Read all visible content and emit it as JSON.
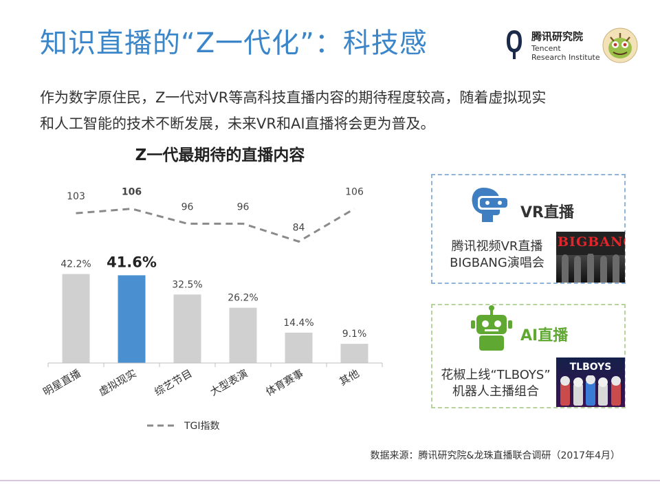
{
  "page": {
    "title": "知识直播的“Z一代化”：科技感",
    "intro": [
      "作为数字原住民，Z一代对VR等高科技直播内容的期待程度较高，随着虚拟现实",
      "和人工智能的技术不断发展，未来VR和AI直播将会更为普及。"
    ],
    "source": "数据来源：腾讯研究院&龙珠直播联合调研（2017年4月）"
  },
  "logo": {
    "name_cn": "腾讯研究院",
    "name_en_1": "Tencent",
    "name_en_2": "Research Institute"
  },
  "chart_data": {
    "type": "bar",
    "title": "Z一代最期待的直播内容",
    "categories": [
      "明星直播",
      "虚拟现实",
      "综艺节目",
      "大型表演",
      "体育赛事",
      "其他"
    ],
    "series": [
      {
        "values": [
          42.2,
          41.6,
          32.5,
          26.2,
          14.4,
          9.1
        ],
        "value_labels": [
          "42.2%",
          "41.6%",
          "32.5%",
          "26.2%",
          "14.4%",
          "9.1%"
        ],
        "highlight_index": 1,
        "color": "#d0d0d0",
        "highlight_color": "#4a8fd0"
      },
      {
        "name": "TGI指数",
        "type": "line",
        "style": "dashed",
        "values": [
          103,
          106,
          96,
          96,
          84,
          106
        ],
        "value_labels": [
          "103",
          "106",
          "96",
          "96",
          "84",
          "106"
        ],
        "highlight_index": 1,
        "color": "#8a8a8a"
      }
    ],
    "ylim": [
      0,
      45
    ],
    "tgi_range": [
      80,
      110
    ],
    "grid": false,
    "legend": "bottom-left"
  },
  "cards": {
    "vr": {
      "title": "VR直播",
      "text": [
        "腾讯视频VR直播",
        "BIGBANG演唱会"
      ],
      "thumb_text": "BIGBANG",
      "icon": "vr-headset-icon",
      "color": "#3f7fc1"
    },
    "ai": {
      "title": "AI直播",
      "text": [
        "花椒上线“TLBOYS”",
        "机器人主播组合"
      ],
      "thumb_text": "TLBOYS",
      "icon": "robot-icon",
      "color": "#5fa832"
    }
  }
}
